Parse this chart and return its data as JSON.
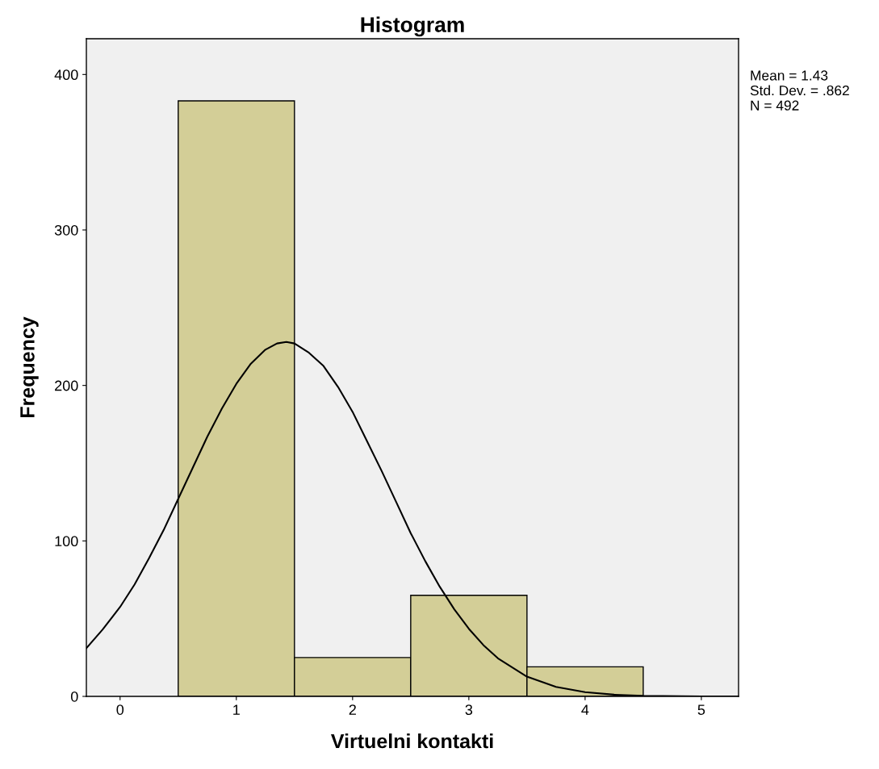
{
  "chart_data": {
    "type": "histogram",
    "title": "Histogram",
    "xlabel": "Virtuelni kontakti",
    "ylabel": "Frequency",
    "bins": [
      0.5,
      1.5,
      2.5,
      3.5,
      4.5
    ],
    "values": [
      383,
      25,
      65,
      19
    ],
    "color": "#d3ce97",
    "series": [
      {
        "type": "line",
        "color": "#000000",
        "x": [
          -0.29,
          -0.15,
          0,
          0.125,
          0.25,
          0.375,
          0.5,
          0.625,
          0.75,
          0.875,
          1.0,
          1.125,
          1.25,
          1.35,
          1.43,
          1.5,
          1.625,
          1.75,
          1.875,
          2.0,
          2.125,
          2.25,
          2.375,
          2.5,
          2.625,
          2.75,
          2.875,
          3.0,
          3.125,
          3.25,
          3.5,
          3.75,
          4.0,
          4.25,
          4.5,
          5.0,
          5.32
        ],
        "values": [
          31,
          43,
          57.5,
          72,
          89,
          107,
          127,
          147,
          167,
          185,
          201,
          214,
          223,
          227,
          228,
          227,
          221,
          212.5,
          199,
          183,
          164,
          145,
          125,
          105,
          87,
          70.5,
          56,
          43.5,
          33,
          24.5,
          12.7,
          6.1,
          2.7,
          1.1,
          0.4,
          0,
          0
        ]
      }
    ],
    "xlim": [
      -0.29,
      5.32
    ],
    "ylim": [
      0,
      423
    ],
    "xticks": [
      0,
      1,
      2,
      3,
      4,
      5
    ],
    "yticks": [
      0,
      100,
      200,
      300,
      400
    ],
    "grid": false,
    "legend": false,
    "marker": "none",
    "line_style": "solid",
    "annotations": [
      "Mean = 1.43",
      "Std. Dev. = .862",
      "N = 492"
    ]
  }
}
